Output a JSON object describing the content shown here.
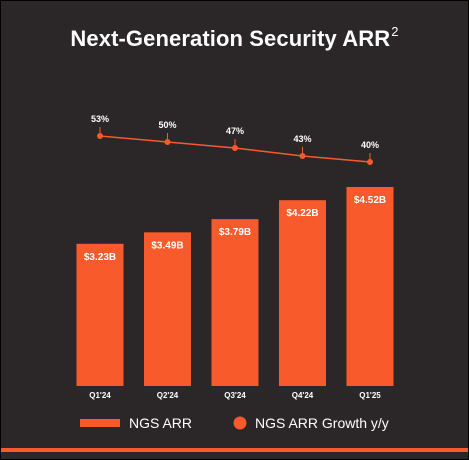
{
  "title": "Next-Generation Security ARR",
  "title_superscript": "2",
  "colors": {
    "background": "#2b2627",
    "accent": "#f95a2c",
    "text": "#ffffff"
  },
  "chart_data": {
    "type": "bar",
    "categories": [
      "Q1'24",
      "Q2'24",
      "Q3'24",
      "Q4'24",
      "Q1'25"
    ],
    "series": [
      {
        "name": "NGS ARR",
        "type": "bar",
        "values": [
          3.23,
          3.49,
          3.79,
          4.22,
          4.52
        ],
        "labels": [
          "$3.23B",
          "$3.49B",
          "$3.79B",
          "$4.22B",
          "$4.52B"
        ]
      },
      {
        "name": "NGS ARR Growth y/y",
        "type": "line",
        "values": [
          53,
          50,
          47,
          43,
          40
        ],
        "labels": [
          "53%",
          "50%",
          "47%",
          "43%",
          "40%"
        ]
      }
    ],
    "legend": {
      "position": "bottom",
      "items": [
        "NGS ARR",
        "NGS ARR Growth y/y"
      ]
    },
    "grid": false,
    "ylim": [
      0,
      4.52
    ]
  }
}
